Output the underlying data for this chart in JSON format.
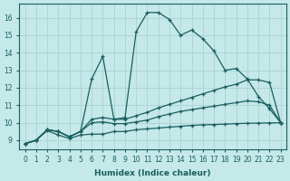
{
  "xlabel": "Humidex (Indice chaleur)",
  "ylabel": "",
  "background_color": "#c5e8e8",
  "grid_color": "#a8cece",
  "line_color": "#1a5f5f",
  "xlim": [
    -0.5,
    23.5
  ],
  "ylim": [
    8.5,
    16.8
  ],
  "xticks": [
    0,
    1,
    2,
    3,
    4,
    5,
    6,
    7,
    8,
    9,
    10,
    11,
    12,
    13,
    14,
    15,
    16,
    17,
    18,
    19,
    20,
    21,
    22,
    23
  ],
  "yticks": [
    9,
    10,
    11,
    12,
    13,
    14,
    15,
    16
  ],
  "curve1_x": [
    0,
    1,
    2,
    3,
    4,
    5,
    6,
    7,
    8,
    9,
    10,
    11,
    12,
    13,
    14,
    15,
    16,
    17,
    18,
    19,
    20,
    21,
    22,
    23
  ],
  "curve1_y": [
    8.8,
    9.0,
    9.6,
    9.5,
    9.2,
    9.5,
    12.5,
    13.8,
    10.2,
    10.3,
    15.2,
    16.3,
    16.3,
    15.9,
    15.0,
    15.3,
    14.8,
    14.1,
    13.0,
    13.1,
    12.5,
    11.5,
    10.8,
    10.0
  ],
  "curve2_x": [
    0,
    1,
    2,
    3,
    4,
    5,
    6,
    7,
    8,
    9,
    10,
    11,
    12,
    13,
    14,
    15,
    16,
    17,
    18,
    19,
    20,
    21,
    22,
    23
  ],
  "curve2_y": [
    8.8,
    9.0,
    9.6,
    9.5,
    9.2,
    9.5,
    10.2,
    10.3,
    10.2,
    10.2,
    10.4,
    10.6,
    10.85,
    11.05,
    11.25,
    11.45,
    11.65,
    11.85,
    12.05,
    12.2,
    12.45,
    12.45,
    12.3,
    10.0
  ],
  "curve3_x": [
    0,
    1,
    2,
    3,
    4,
    5,
    6,
    7,
    8,
    9,
    10,
    11,
    12,
    13,
    14,
    15,
    16,
    17,
    18,
    19,
    20,
    21,
    22,
    23
  ],
  "curve3_y": [
    8.8,
    9.0,
    9.6,
    9.5,
    9.2,
    9.5,
    10.0,
    10.05,
    9.95,
    9.95,
    10.05,
    10.15,
    10.35,
    10.5,
    10.65,
    10.75,
    10.85,
    10.95,
    11.05,
    11.15,
    11.25,
    11.2,
    11.0,
    10.0
  ],
  "curve4_x": [
    0,
    1,
    2,
    3,
    4,
    5,
    6,
    7,
    8,
    9,
    10,
    11,
    12,
    13,
    14,
    15,
    16,
    17,
    18,
    19,
    20,
    21,
    22,
    23
  ],
  "curve4_y": [
    8.8,
    9.0,
    9.55,
    9.3,
    9.1,
    9.3,
    9.35,
    9.35,
    9.5,
    9.5,
    9.6,
    9.65,
    9.7,
    9.75,
    9.8,
    9.85,
    9.88,
    9.9,
    9.92,
    9.95,
    9.97,
    9.98,
    9.99,
    10.0
  ]
}
